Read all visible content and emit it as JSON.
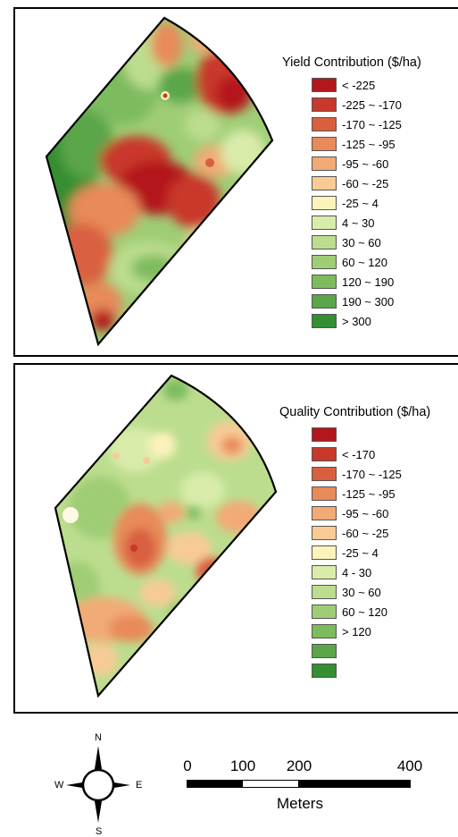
{
  "yield_map": {
    "legend_title": "Yield Contribution ($/ha)",
    "classes": [
      {
        "label": "< -225",
        "color": "#b3171e"
      },
      {
        "label": "-225 ~ -170",
        "color": "#c9392b"
      },
      {
        "label": "-170 ~ -125",
        "color": "#d9603f"
      },
      {
        "label": "-125 ~ -95",
        "color": "#e88a5a"
      },
      {
        "label": "-95 ~ -60",
        "color": "#f2aa76"
      },
      {
        "label": "-60 ~ -25",
        "color": "#f8cb95"
      },
      {
        "label": "-25 ~ 4",
        "color": "#fcf3bb"
      },
      {
        "label": "4 ~ 30",
        "color": "#d9ecaa"
      },
      {
        "label": "30 ~ 60",
        "color": "#bcdd8e"
      },
      {
        "label": "60 ~ 120",
        "color": "#9fcd76"
      },
      {
        "label": "120 ~ 190",
        "color": "#7dbb5e"
      },
      {
        "label": "190 ~  300",
        "color": "#5aa648"
      },
      {
        "label": "> 300",
        "color": "#358e32"
      }
    ]
  },
  "quality_map": {
    "legend_title": "Quality Contribution ($/ha)",
    "classes": [
      {
        "label": "",
        "color": "#b3171e"
      },
      {
        "label": "< -170",
        "color": "#c9392b"
      },
      {
        "label": "-170 ~ -125",
        "color": "#d9603f"
      },
      {
        "label": "-125 ~ -95",
        "color": "#e88a5a"
      },
      {
        "label": "-95 ~ -60",
        "color": "#f2aa76"
      },
      {
        "label": "-60 ~ -25",
        "color": "#f8cb95"
      },
      {
        "label": "-25 ~ 4",
        "color": "#fcf3bb"
      },
      {
        "label": "4 - 30",
        "color": "#d9ecaa"
      },
      {
        "label": "30 ~ 60",
        "color": "#bcdd8e"
      },
      {
        "label": "60 ~ 120",
        "color": "#9fcd76"
      },
      {
        "label": "> 120",
        "color": "#7dbb5e"
      },
      {
        "label": "",
        "color": "#5aa648"
      },
      {
        "label": "",
        "color": "#358e32"
      }
    ]
  },
  "scale_bar": {
    "ticks": [
      "0",
      "100",
      "200",
      "400"
    ],
    "unit": "Meters"
  },
  "north_arrow": {
    "n": "N",
    "s": "S",
    "e": "E",
    "w": "W"
  }
}
